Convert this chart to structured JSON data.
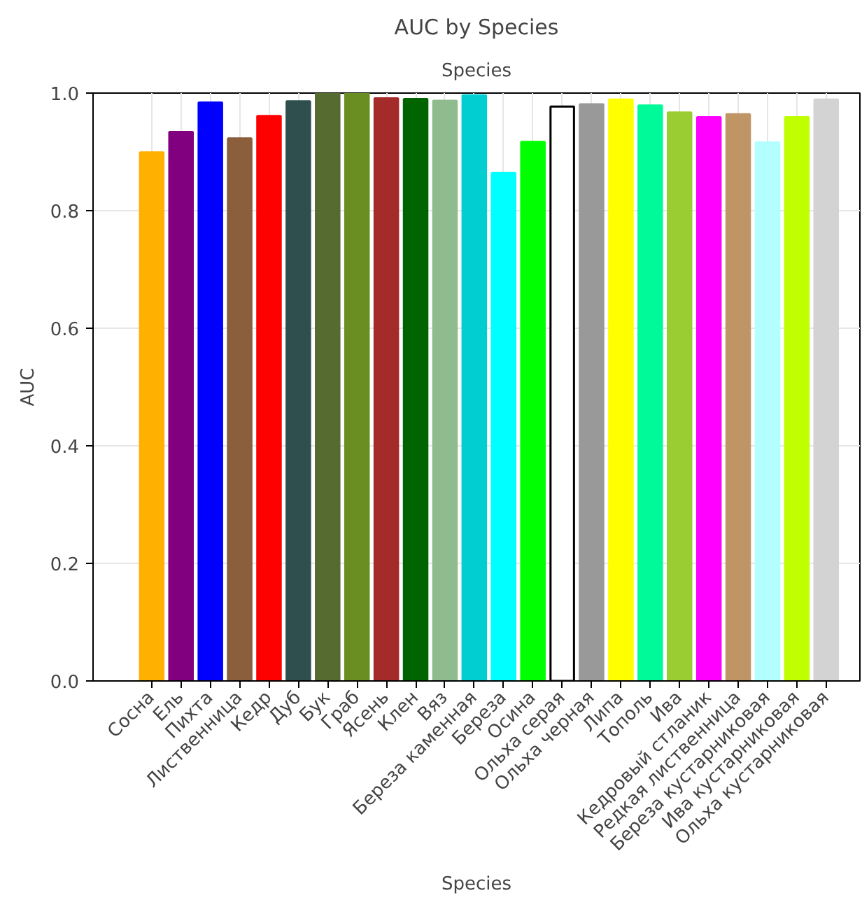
{
  "chart_data": {
    "type": "bar",
    "title": "AUC by Species",
    "xlabel": "Species",
    "ylabel": "AUC",
    "annotations": [
      "Species"
    ],
    "categories": [
      "Сосна",
      "Ель",
      "Пихта",
      "Лиственница",
      "Кедр",
      "Дуб",
      "Бук",
      "Граб",
      "Ясень",
      "Клен",
      "Вяз",
      "Береза каменная",
      "Береза",
      "Осина",
      "Ольха серая",
      "Ольха черная",
      "Липа",
      "Тополь",
      "Ива",
      "Кедровый стланик",
      "Редкая лиственница",
      "Береза кустарниковая",
      "Ива кустарниковая",
      "Ольха кустарниковая"
    ],
    "values": [
      0.899,
      0.934,
      0.984,
      0.923,
      0.961,
      0.986,
      1.0,
      1.0,
      0.991,
      0.99,
      0.987,
      0.996,
      0.864,
      0.917,
      0.977,
      0.981,
      0.989,
      0.979,
      0.967,
      0.959,
      0.964,
      0.916,
      0.959,
      0.989
    ],
    "colors": [
      "#ffb000",
      "#800080",
      "#0000ff",
      "#8b5e3c",
      "#ff0000",
      "#2f4f4f",
      "#556b2f",
      "#6b8e23",
      "#a52a2a",
      "#006400",
      "#8fbc8f",
      "#00ced1",
      "#00ffff",
      "#00ff00",
      "#ffffff",
      "#999999",
      "#ffff00",
      "#00fa9a",
      "#9acd32",
      "#ff00ff",
      "#bf9565",
      "#b3ffff",
      "#bfff00",
      "#d3d3d3"
    ],
    "ylim": [
      0,
      1.0
    ],
    "yticks": [
      {
        "value": 0,
        "label": "0.0"
      },
      {
        "value": 0.2,
        "label": "0.2"
      },
      {
        "value": 0.4,
        "label": "0.4"
      },
      {
        "value": 0.6,
        "label": "0.6"
      },
      {
        "value": 0.8,
        "label": "0.8"
      },
      {
        "value": 1.0,
        "label": "1.0"
      }
    ],
    "grid": true
  }
}
